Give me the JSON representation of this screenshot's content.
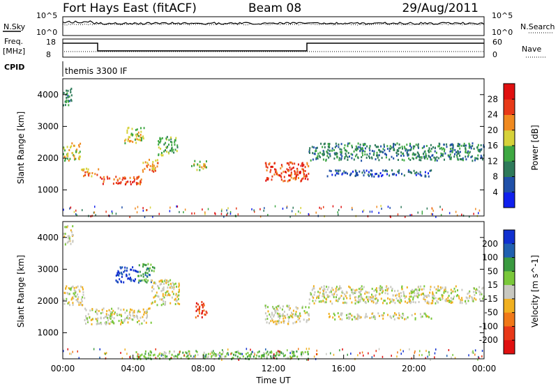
{
  "header": {
    "station": "Fort Hays East (fitACF)",
    "beam": "Beam 08",
    "date": "29/Aug/2011"
  },
  "top_panels": {
    "nsky_label": "N.Sky",
    "nsearch_label": "N.Search",
    "nsky_ticks": [
      "10^5",
      "10^0"
    ],
    "nsearch_ticks": [
      "10^5",
      "10^0"
    ],
    "freq_label_1": "Freq.",
    "freq_label_2": "[MHz]",
    "freq_ticks": [
      "18",
      "8"
    ],
    "nave_label": "Nave",
    "nave_ticks": [
      "60",
      "0"
    ],
    "cpid_label": "CPID",
    "cpid_text": "themis 3300 IF"
  },
  "chart_data": [
    {
      "type": "heatmap",
      "panel": "power",
      "xlabel": "",
      "ylabel": "Slant Range [km]",
      "xlim": [
        0,
        24
      ],
      "ylim": [
        180,
        4500
      ],
      "yticks": [
        "1000",
        "2000",
        "3000",
        "4000"
      ],
      "colorbar": {
        "label": "Power [dB]",
        "ticks": [
          "4",
          "8",
          "12",
          "16",
          "20",
          "24",
          "28"
        ],
        "colors": [
          "#1020ee",
          "#2050a8",
          "#2e7a5a",
          "#3ea842",
          "#d6d23a",
          "#f08a20",
          "#e83a18",
          "#e01010"
        ]
      },
      "bands": [
        {
          "t0": 0.0,
          "t1": 0.5,
          "r0": 3650,
          "r1": 4250,
          "level": 2
        },
        {
          "t0": 0.0,
          "t1": 1.0,
          "r0": 1950,
          "r1": 2500,
          "level": 4
        },
        {
          "t0": 1.0,
          "t1": 2.0,
          "r0": 1450,
          "r1": 1700,
          "level": 5
        },
        {
          "t0": 2.0,
          "t1": 4.5,
          "r0": 1200,
          "r1": 1450,
          "level": 6
        },
        {
          "t0": 3.5,
          "t1": 4.6,
          "r0": 2500,
          "r1": 3000,
          "level": 4
        },
        {
          "t0": 4.5,
          "t1": 5.4,
          "r0": 1600,
          "r1": 2000,
          "level": 5
        },
        {
          "t0": 5.4,
          "t1": 6.5,
          "r0": 2100,
          "r1": 2700,
          "level": 3
        },
        {
          "t0": 7.3,
          "t1": 8.2,
          "r0": 1650,
          "r1": 1950,
          "level": 4
        },
        {
          "t0": 11.5,
          "t1": 14.0,
          "r0": 1300,
          "r1": 1900,
          "level": 6
        },
        {
          "t0": 14.0,
          "t1": 24.0,
          "r0": 1950,
          "r1": 2500,
          "level": 2
        },
        {
          "t0": 15.0,
          "t1": 21.0,
          "r0": 1450,
          "r1": 1650,
          "level": 1
        }
      ]
    },
    {
      "type": "heatmap",
      "panel": "velocity",
      "xlabel": "Time UT",
      "ylabel": "Slant Range [km]",
      "xlim": [
        0,
        24
      ],
      "ylim": [
        180,
        4500
      ],
      "xticks": [
        "00:00",
        "04:00",
        "08:00",
        "12:00",
        "16:00",
        "20:00",
        "00:00"
      ],
      "yticks": [
        "1000",
        "2000",
        "3000",
        "4000"
      ],
      "colorbar": {
        "label": "Velocity [m s^-1]",
        "ticks": [
          "200",
          "100",
          "50",
          "15",
          "-15",
          "-50",
          "-100",
          "-200"
        ],
        "colors": [
          "#1030d0",
          "#2060b0",
          "#3a9a40",
          "#7ac83a",
          "#c8c8c0",
          "#f0b020",
          "#f07818",
          "#e83818",
          "#e01010"
        ]
      },
      "bands": [
        {
          "t0": 0.0,
          "t1": 0.6,
          "r0": 3800,
          "r1": 4400,
          "level": 4
        },
        {
          "t0": 0.0,
          "t1": 1.2,
          "r0": 1900,
          "r1": 2500,
          "level": 4
        },
        {
          "t0": 1.2,
          "t1": 5.0,
          "r0": 1300,
          "r1": 1800,
          "level": 4
        },
        {
          "t0": 3.0,
          "t1": 4.2,
          "r0": 2600,
          "r1": 3100,
          "level": 0
        },
        {
          "t0": 4.2,
          "t1": 5.2,
          "r0": 2600,
          "r1": 3200,
          "level": 2
        },
        {
          "t0": 5.0,
          "t1": 6.6,
          "r0": 1900,
          "r1": 2700,
          "level": 4
        },
        {
          "t0": 7.5,
          "t1": 8.2,
          "r0": 1500,
          "r1": 2000,
          "level": 7
        },
        {
          "t0": 11.5,
          "t1": 14.0,
          "r0": 1300,
          "r1": 1900,
          "level": 4
        },
        {
          "t0": 14.0,
          "t1": 24.0,
          "r0": 1950,
          "r1": 2500,
          "level": 4
        },
        {
          "t0": 15.0,
          "t1": 21.0,
          "r0": 1450,
          "r1": 1650,
          "level": 4
        },
        {
          "t0": 4.0,
          "t1": 14.0,
          "r0": 200,
          "r1": 450,
          "level": 3
        }
      ]
    }
  ]
}
